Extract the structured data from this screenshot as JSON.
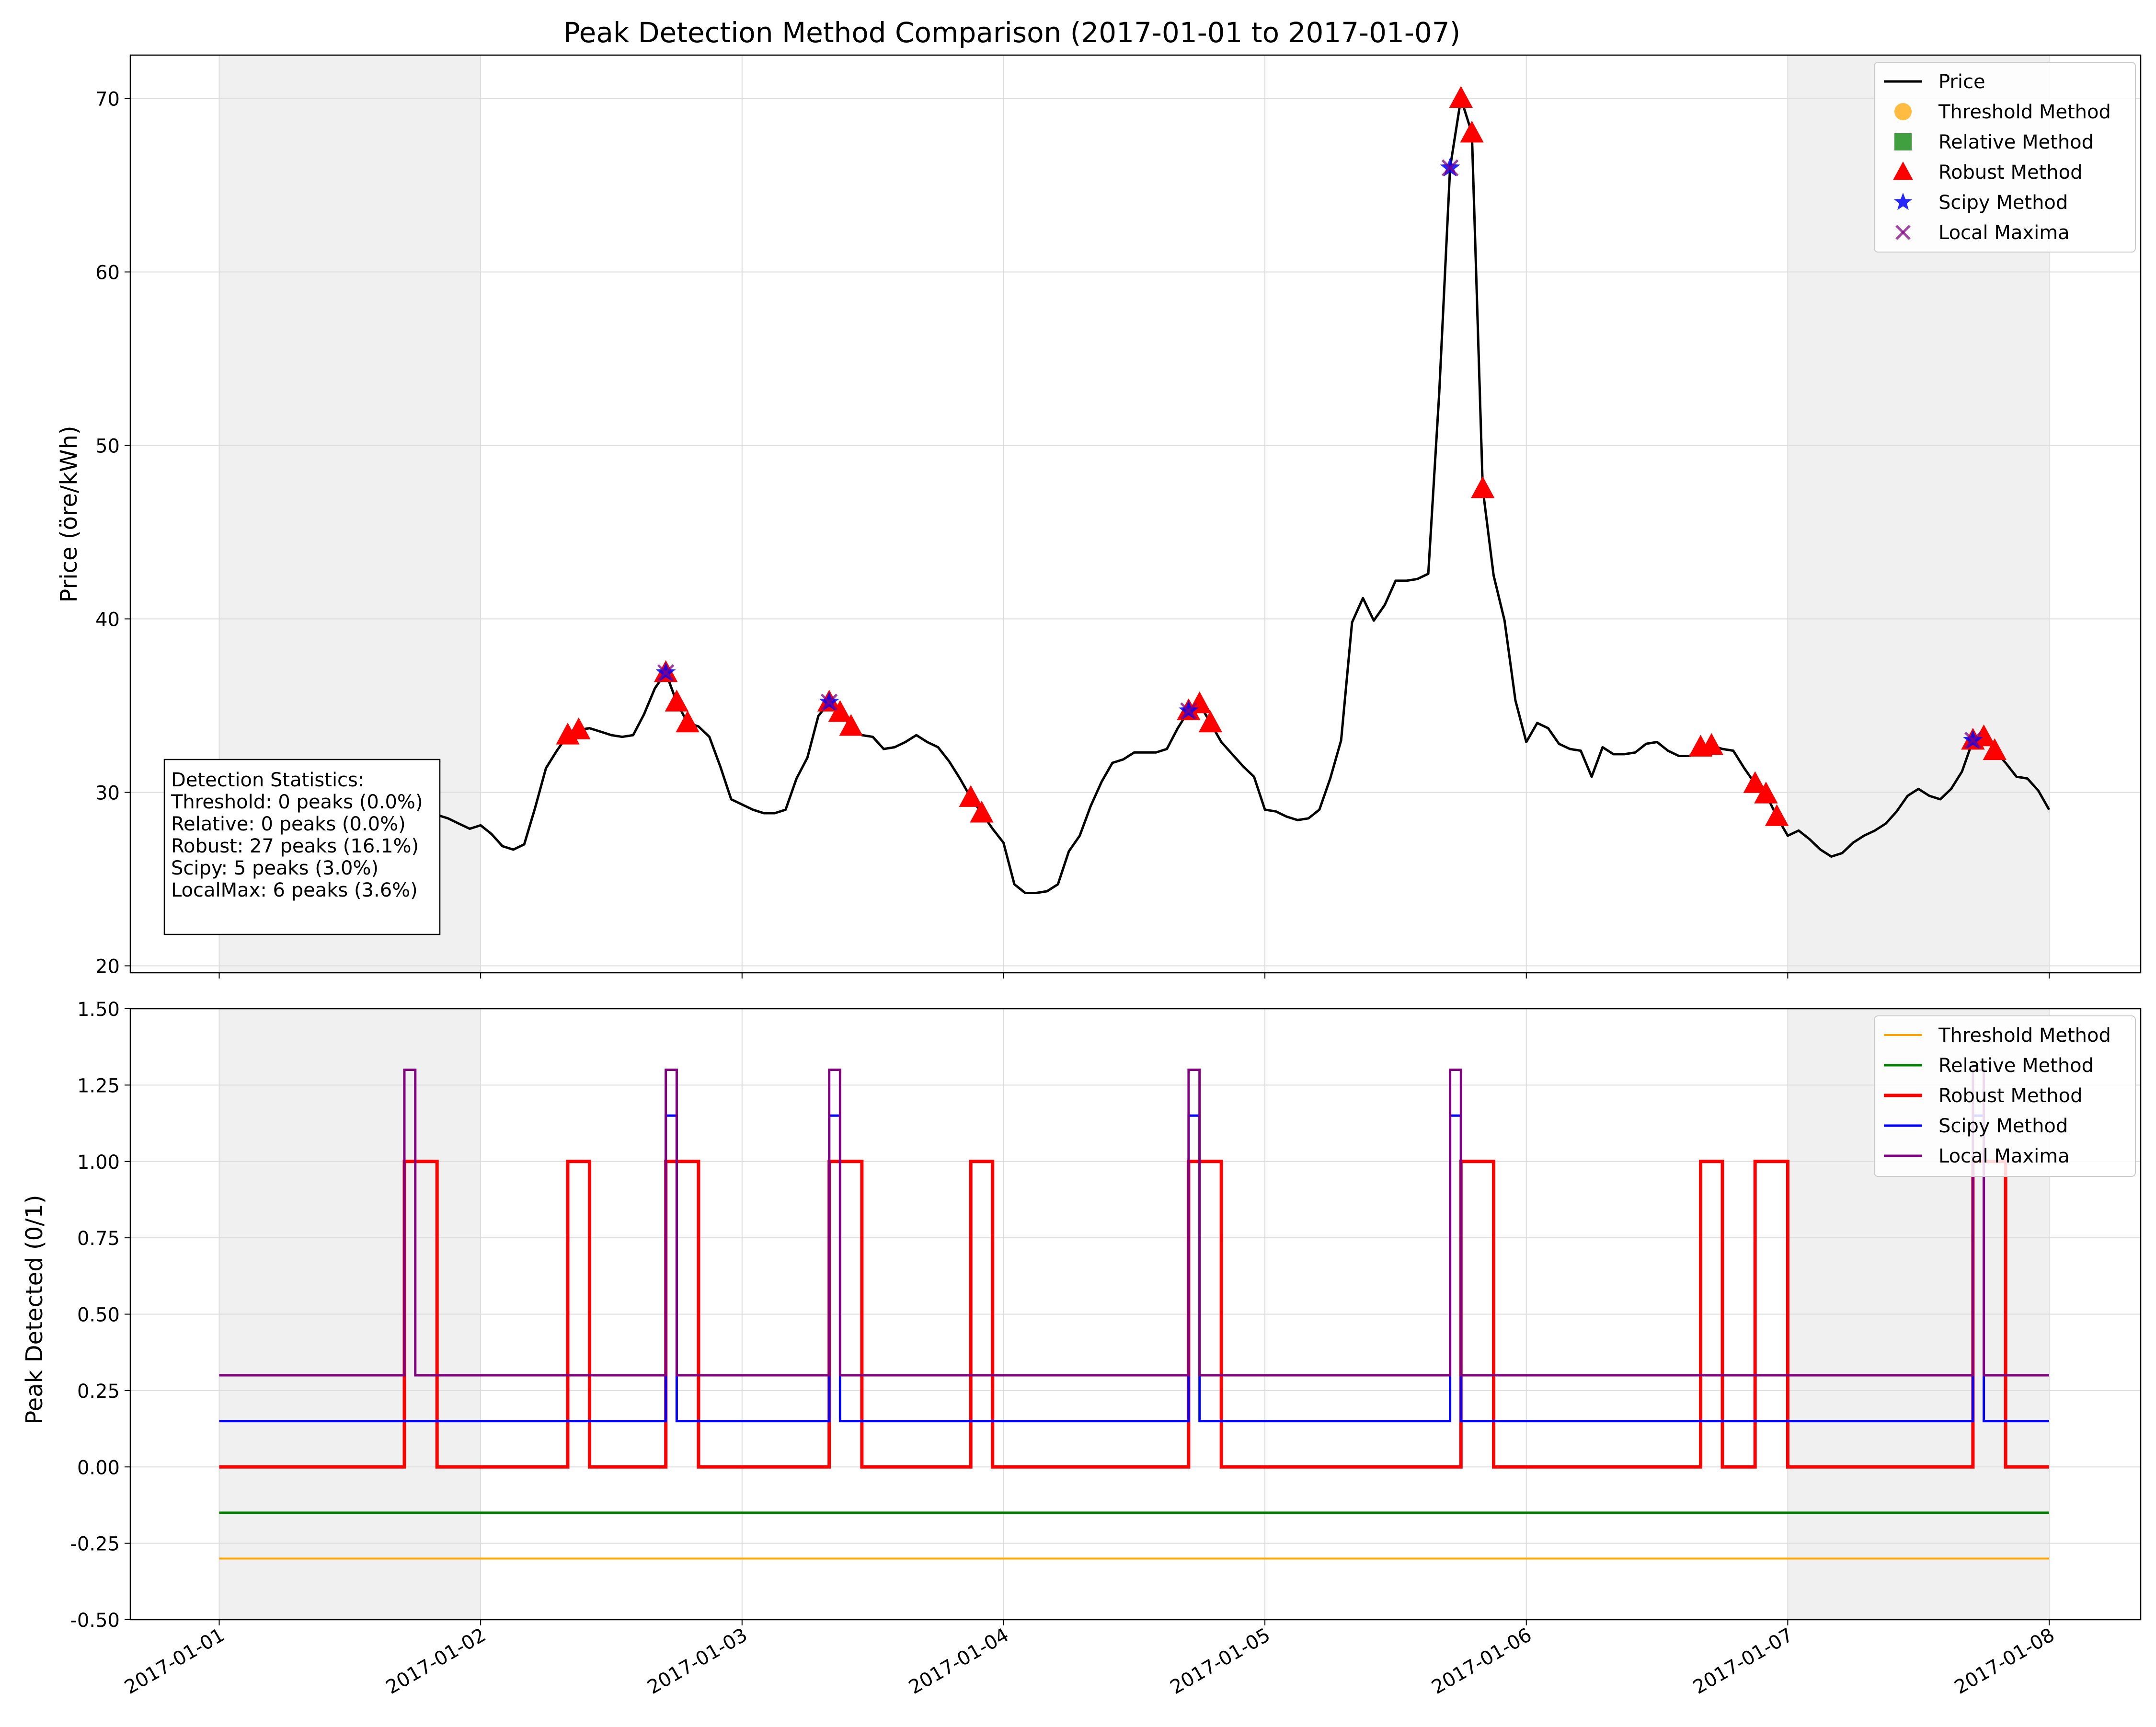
{
  "chart_data": [
    {
      "type": "line",
      "title": "Peak Detection Method Comparison (2017-01-01 to 2017-01-07)",
      "ylabel": "Price (öre/kWh)",
      "xlabel": "",
      "ylim": [
        19.6,
        72.5
      ],
      "xlim_days": [
        -0.34,
        7.35
      ],
      "yticks": [
        20,
        30,
        40,
        50,
        60,
        70
      ],
      "xticks": [
        "2017-01-01",
        "2017-01-02",
        "2017-01-03",
        "2017-01-04",
        "2017-01-05",
        "2017-01-06",
        "2017-01-07",
        "2017-01-08"
      ],
      "grid": true,
      "legend_position": "upper right",
      "weekend_shading": [
        {
          "from": "2017-01-01",
          "to": "2017-01-02"
        },
        {
          "from": "2017-01-07",
          "to": "2017-01-08"
        }
      ],
      "x_hours": "hourly from 2017-01-01 00:00 to 2017-01-07 23:00 (168 points)",
      "price_series": {
        "name": "Price",
        "color": "#000000",
        "values": [
          22.9,
          22.9,
          22.9,
          22.1,
          22.9,
          23.7,
          24.3,
          24.6,
          24.8,
          25.0,
          25.1,
          25.3,
          26.0,
          26.8,
          27.5,
          28.1,
          28.6,
          29.0,
          29.2,
          29.0,
          28.7,
          28.5,
          28.2,
          27.9,
          28.1,
          27.6,
          26.9,
          26.7,
          27.0,
          29.1,
          31.4,
          32.4,
          33.3,
          33.6,
          33.7,
          33.5,
          33.3,
          33.2,
          33.3,
          34.5,
          36.0,
          36.9,
          35.2,
          34.0,
          33.8,
          33.2,
          31.5,
          29.6,
          29.3,
          29.0,
          28.8,
          28.8,
          29.0,
          30.8,
          32.0,
          34.4,
          35.2,
          34.6,
          33.8,
          33.3,
          33.2,
          32.5,
          32.6,
          32.9,
          33.3,
          32.9,
          32.6,
          31.8,
          30.8,
          29.7,
          28.8,
          27.9,
          27.1,
          24.7,
          24.2,
          24.2,
          24.3,
          24.7,
          26.6,
          27.5,
          29.2,
          30.6,
          31.7,
          31.9,
          32.3,
          32.3,
          32.3,
          32.5,
          33.7,
          34.7,
          35.1,
          34.0,
          32.9,
          32.2,
          31.5,
          30.9,
          29.0,
          28.9,
          28.6,
          28.4,
          28.5,
          29.0,
          30.8,
          33.0,
          39.8,
          41.2,
          39.9,
          40.8,
          42.2,
          42.2,
          42.3,
          42.6,
          53.0,
          66.0,
          70.0,
          68.0,
          47.5,
          42.5,
          39.9,
          35.3,
          32.9,
          34.0,
          33.7,
          32.8,
          32.5,
          32.4,
          30.9,
          32.6,
          32.2,
          32.2,
          32.3,
          32.8,
          32.9,
          32.4,
          32.1,
          32.1,
          32.6,
          32.7,
          32.5,
          32.4,
          31.4,
          30.5,
          29.9,
          28.6,
          27.5,
          27.8,
          27.3,
          26.7,
          26.3,
          26.5,
          27.1,
          27.5,
          27.8,
          28.2,
          28.9,
          29.8,
          30.2,
          29.8,
          29.6,
          30.2,
          31.2,
          33.0,
          33.2,
          32.4,
          31.7,
          30.9,
          30.8,
          30.1,
          29.0
        ]
      },
      "markers": [
        {
          "name": "Threshold Method",
          "symbol": "circle",
          "color": "#ffa500",
          "hours": []
        },
        {
          "name": "Relative Method",
          "symbol": "square",
          "color": "#008000",
          "hours": []
        },
        {
          "name": "Robust Method",
          "symbol": "triangle",
          "color": "#ff0000",
          "hours": [
            17,
            18,
            19,
            32,
            33,
            41,
            42,
            43,
            56,
            57,
            58,
            69,
            70,
            89,
            90,
            91,
            114,
            115,
            116,
            136,
            137,
            141,
            142,
            143,
            161,
            162,
            163
          ]
        },
        {
          "name": "Scipy Method",
          "symbol": "star",
          "color": "#0000ff",
          "hours": [
            41,
            56,
            89,
            113,
            161
          ]
        },
        {
          "name": "Local Maxima",
          "symbol": "x",
          "color": "#800080",
          "hours": [
            17,
            41,
            56,
            89,
            113,
            161
          ]
        }
      ],
      "stats_box": {
        "title": "Detection Statistics:",
        "lines": [
          "Threshold: 0 peaks (0.0%)",
          "Relative: 0 peaks (0.0%)",
          "Robust: 27 peaks (16.1%)",
          "Scipy: 5 peaks (3.0%)",
          "LocalMax: 6 peaks (3.6%)"
        ]
      }
    },
    {
      "type": "line",
      "title": "",
      "ylabel": "Peak Detected (0/1)",
      "xlabel": "",
      "ylim": [
        -0.5,
        1.5
      ],
      "yticks": [
        "-0.50",
        "-0.25",
        "0.00",
        "0.25",
        "0.50",
        "0.75",
        "1.00",
        "1.25",
        "1.50"
      ],
      "grid": true,
      "legend_position": "upper right",
      "series": [
        {
          "name": "Threshold Method",
          "color": "#ffa500",
          "offset": -0.3,
          "stroke": "thin",
          "on_hours": []
        },
        {
          "name": "Relative Method",
          "color": "#008000",
          "offset": -0.15,
          "stroke": "medium",
          "on_hours": []
        },
        {
          "name": "Robust Method",
          "color": "#ff0000",
          "offset": 0.0,
          "stroke": "thick",
          "on_hours": [
            17,
            18,
            19,
            32,
            33,
            41,
            42,
            43,
            56,
            57,
            58,
            69,
            70,
            89,
            90,
            91,
            114,
            115,
            116,
            136,
            137,
            141,
            142,
            143,
            161,
            162,
            163
          ]
        },
        {
          "name": "Scipy Method",
          "color": "#0000ff",
          "offset": 0.15,
          "stroke": "medium",
          "on_hours": [
            41,
            56,
            89,
            113,
            161
          ]
        },
        {
          "name": "Local Maxima",
          "color": "#800080",
          "offset": 0.3,
          "stroke": "medium",
          "on_hours": [
            17,
            41,
            56,
            89,
            113,
            161
          ]
        }
      ]
    }
  ]
}
